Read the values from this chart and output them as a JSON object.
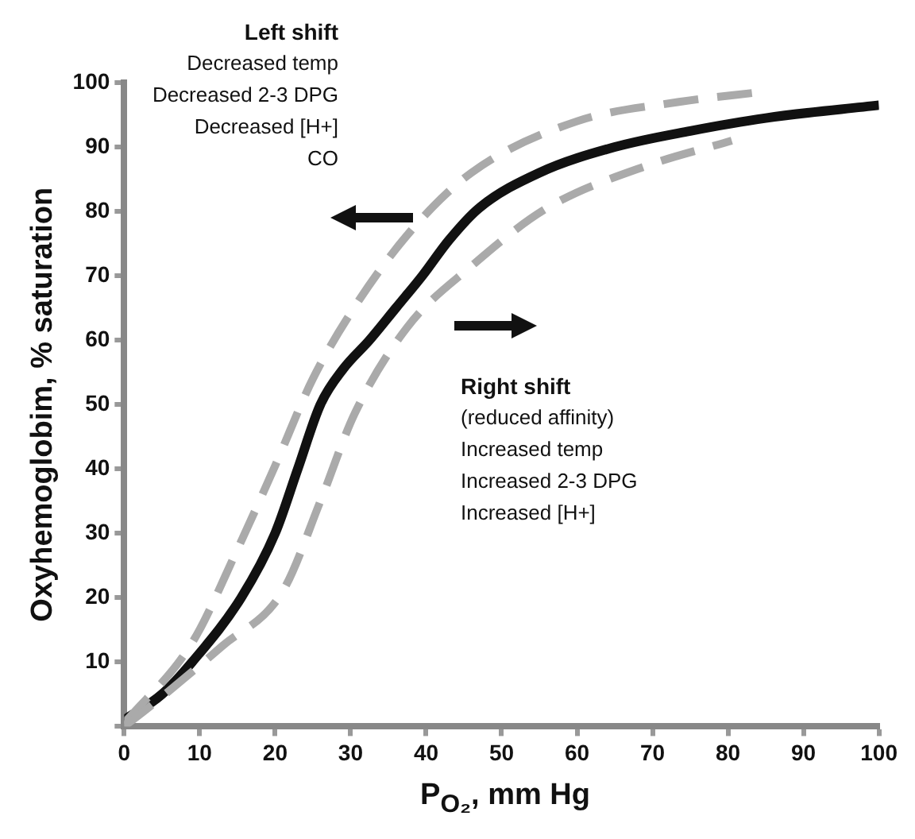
{
  "chart_data": {
    "type": "line",
    "xlabel": "P$_{O₂}$, mm Hg",
    "ylabel": "Oxyhemoglobim, % saturation",
    "xlim": [
      0,
      100
    ],
    "xticks": [
      0,
      10,
      20,
      30,
      40,
      50,
      60,
      70,
      80,
      90,
      100
    ],
    "ylim": [
      0,
      100
    ],
    "yticks": [
      {
        "value": 0,
        "label": null
      },
      10,
      20,
      30,
      40,
      50,
      60,
      70,
      80,
      90,
      100
    ],
    "grid": false,
    "legend": false,
    "marker": "none",
    "series": [
      {
        "color": "#111111",
        "line_style": "solid",
        "x": [
          0,
          5,
          9,
          15.5,
          20,
          23,
          26,
          29,
          32.5,
          36,
          39.5,
          43,
          47,
          55,
          65,
          75,
          85,
          100
        ],
        "values": [
          1,
          5,
          10,
          20,
          30,
          40,
          50,
          55.5,
          60,
          65,
          70,
          75.5,
          80.5,
          86,
          90,
          92.5,
          94.5,
          96.5
        ]
      },
      {
        "color": "#aaaaaa",
        "line_style": "dashed",
        "x": [
          0,
          9,
          15,
          20,
          25,
          31,
          38,
          46,
          60,
          73.5,
          84
        ],
        "values": [
          0.5,
          13,
          27.5,
          40.5,
          54,
          66,
          77,
          86,
          94,
          97,
          98.5
        ]
      },
      {
        "color": "#aaaaaa",
        "line_style": "dashed",
        "x": [
          0,
          3.3,
          13,
          21,
          26,
          30.5,
          37.5,
          46,
          56,
          69,
          80.5
        ],
        "values": [
          0,
          3,
          12.5,
          21,
          35,
          48.5,
          62,
          71.5,
          80.5,
          87,
          91
        ]
      }
    ],
    "annotations": [
      "Left shift\nDecreased temp\nDecreased 2-3 DPG\nDecreased [H+]\nCO",
      "Right shift\n(reduced affinity)\nIncreased temp\nIncreased 2-3 DPG\nIncreased [H+]"
    ]
  }
}
